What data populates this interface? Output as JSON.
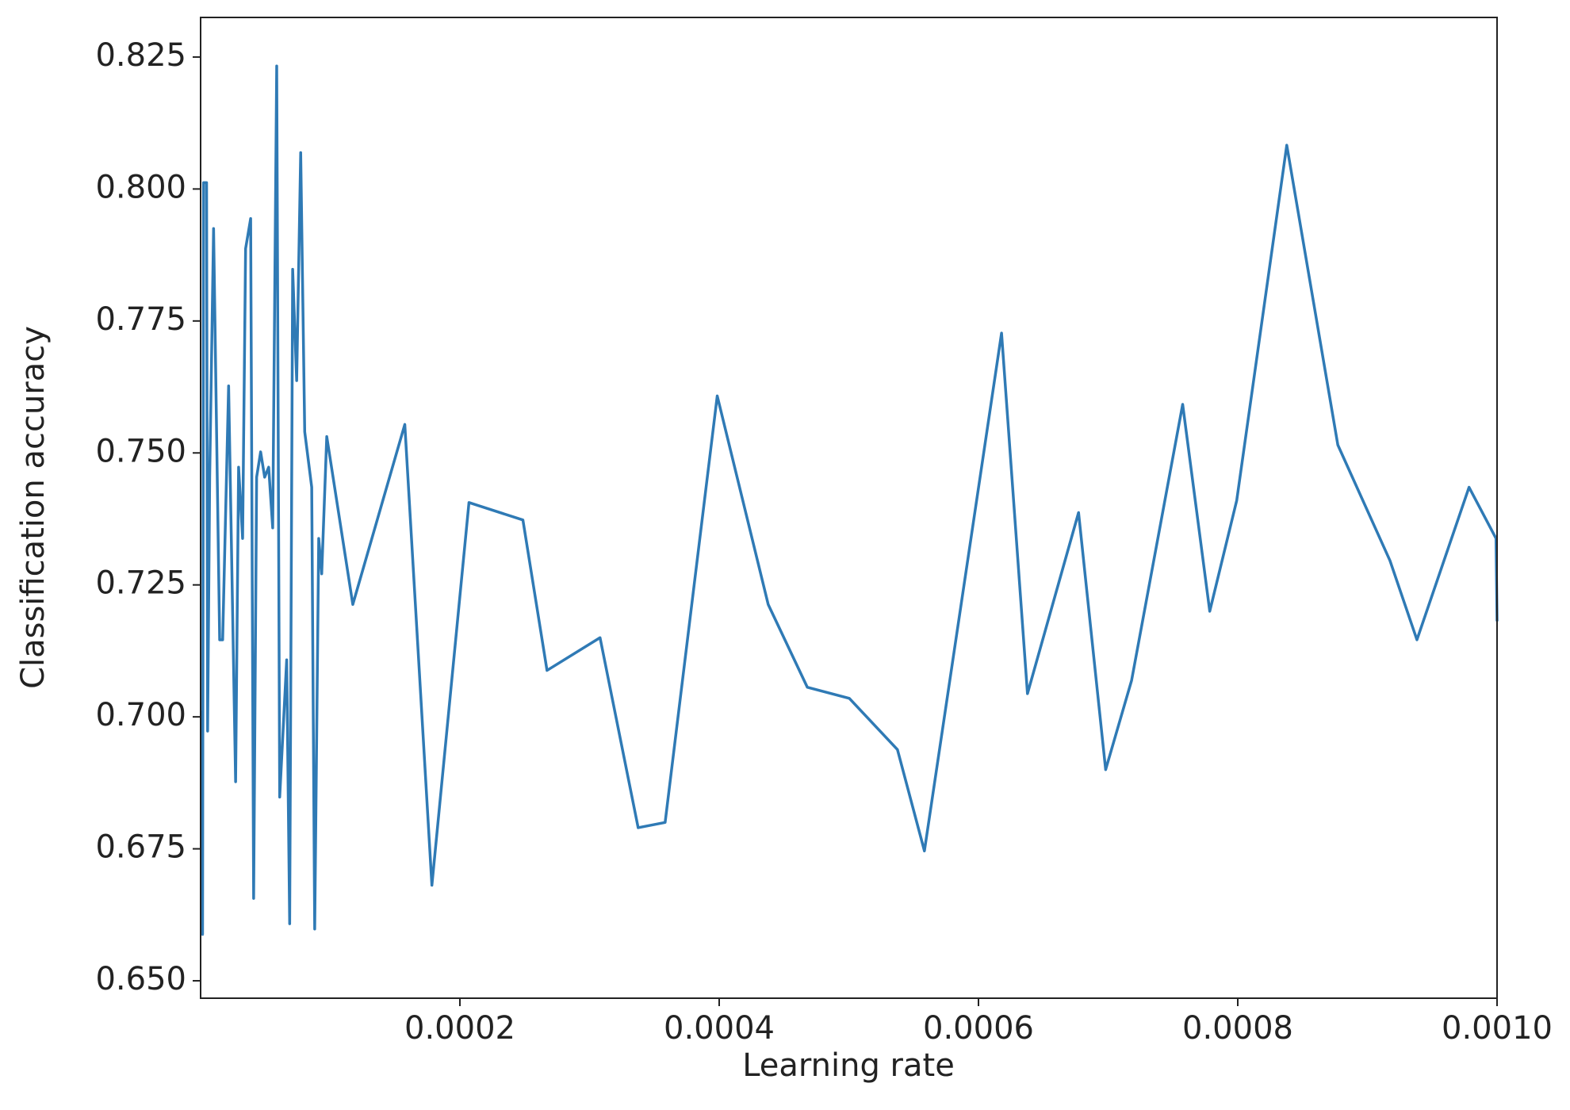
{
  "chart_data": {
    "type": "line",
    "x_label": "Learning rate",
    "y_label": "Classification accuracy",
    "xlim": [
      0,
      0.001
    ],
    "ylim": [
      0.6467,
      0.8325
    ],
    "xticks": [
      {
        "value": 0.0002,
        "label": "0.0002"
      },
      {
        "value": 0.0004,
        "label": "0.0004"
      },
      {
        "value": 0.0006,
        "label": "0.0006"
      },
      {
        "value": 0.0008,
        "label": "0.0008"
      },
      {
        "value": 0.001,
        "label": "0.0010"
      }
    ],
    "yticks": [
      {
        "value": 0.65,
        "label": "0.650"
      },
      0.675,
      {
        "value": 0.7,
        "label": "0.700"
      },
      0.725,
      {
        "value": 0.75,
        "label": "0.750"
      },
      0.775,
      {
        "value": 0.8,
        "label": "0.800"
      },
      0.825
    ],
    "grid": false,
    "series": [
      {
        "name": "accuracy",
        "color": "#2f7ab5",
        "x": [
          8e-07,
          1.5e-06,
          2.3e-06,
          4.6e-06,
          5.4e-06,
          7e-06,
          1e-05,
          1.47e-05,
          1.7e-05,
          2.16e-05,
          2.7e-05,
          2.93e-05,
          3.24e-05,
          3.47e-05,
          3.86e-05,
          4.09e-05,
          4.32e-05,
          4.63e-05,
          4.94e-05,
          5.25e-05,
          5.56e-05,
          5.87e-05,
          6.1e-05,
          6.64e-05,
          6.87e-05,
          7.1e-05,
          7.41e-05,
          7.72e-05,
          8.03e-05,
          8.57e-05,
          8.8e-05,
          9.11e-05,
          9.34e-05,
          9.73e-05,
          0.0001174,
          0.0001575,
          0.0001784,
          0.000207,
          0.0002486,
          0.0002672,
          0.0003081,
          0.0003375,
          0.0003583,
          0.0003985,
          0.0004378,
          0.000468,
          0.0005004,
          0.0005375,
          0.0005583,
          0.0006178,
          0.0006378,
          0.0006772,
          0.0006981,
          0.0007181,
          0.0007575,
          0.0007784,
          0.0007992,
          0.0008378,
          0.0008772,
          0.0009174,
          0.0009382,
          0.0009784,
          0.0009992,
          0.001
        ],
        "values": [
          0.7012,
          0.6588,
          0.8012,
          0.8012,
          0.6973,
          0.7454,
          0.7925,
          0.7146,
          0.7146,
          0.7627,
          0.6877,
          0.7473,
          0.7338,
          0.7887,
          0.7944,
          0.6656,
          0.7454,
          0.7502,
          0.7454,
          0.7473,
          0.7358,
          0.8233,
          0.6848,
          0.7108,
          0.6608,
          0.7848,
          0.7637,
          0.8069,
          0.754,
          0.7435,
          0.6598,
          0.7338,
          0.7271,
          0.7531,
          0.7213,
          0.7554,
          0.6681,
          0.7406,
          0.7373,
          0.7088,
          0.715,
          0.679,
          0.68,
          0.7608,
          0.7213,
          0.7056,
          0.7035,
          0.6938,
          0.6746,
          0.7727,
          0.7044,
          0.7387,
          0.69,
          0.7069,
          0.7592,
          0.72,
          0.741,
          0.8083,
          0.7515,
          0.7296,
          0.7146,
          0.7435,
          0.7338,
          0.7181
        ]
      }
    ]
  }
}
